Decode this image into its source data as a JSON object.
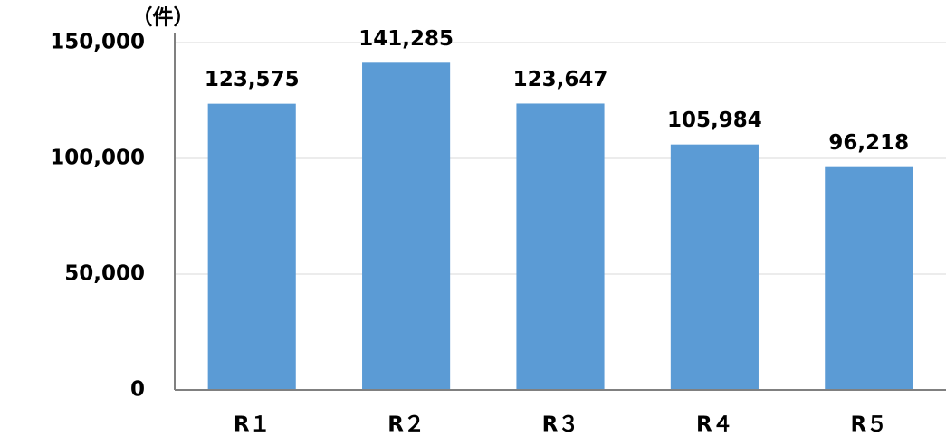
{
  "chart_data": {
    "type": "bar",
    "y_axis_label": "（件）",
    "categories": [
      "R１",
      "R２",
      "R３",
      "R４",
      "R５"
    ],
    "values": [
      123575,
      141285,
      123647,
      105984,
      96218
    ],
    "value_labels": [
      "123,575",
      "141,285",
      "123,647",
      "105,984",
      "96,218"
    ],
    "color": "#5b9bd5",
    "ylim": [
      0,
      150000
    ],
    "yticks": [
      0,
      {
        "value": 50000,
        "label": "50,000"
      },
      {
        "value": 100000,
        "label": "100,000"
      },
      {
        "value": 150000,
        "label": "150,000"
      }
    ],
    "grid": true
  }
}
